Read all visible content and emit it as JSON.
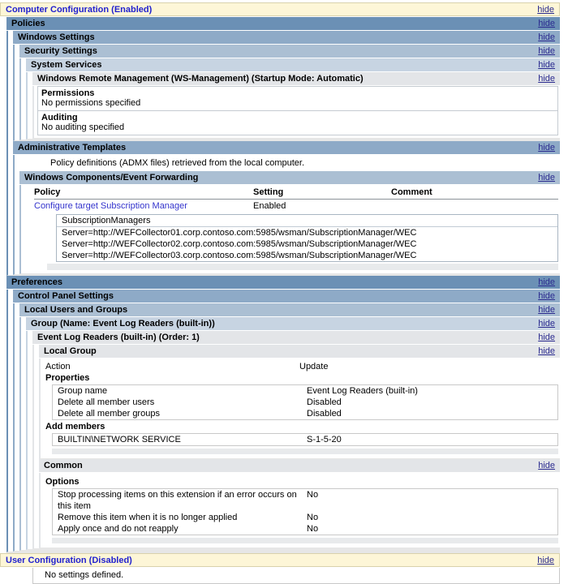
{
  "hide_label": "hide",
  "bars": {
    "computer_config": "Computer Configuration (Enabled)",
    "policies": "Policies",
    "windows_settings": "Windows Settings",
    "security_settings": "Security Settings",
    "system_services": "System Services",
    "wrm_service": "Windows Remote Management (WS-Management) (Startup Mode: Automatic)",
    "admin_templates": "Administrative Templates",
    "wcef": "Windows Components/Event Forwarding",
    "preferences": "Preferences",
    "control_panel_settings": "Control Panel Settings",
    "local_users_groups": "Local Users and Groups",
    "group": "Group (Name: Event Log Readers (built-in))",
    "event_log_readers": "Event Log Readers (built-in) (Order: 1)",
    "local_group": "Local Group",
    "common": "Common",
    "user_config": "User Configuration (Disabled)"
  },
  "wrm_section": {
    "permissions_label": "Permissions",
    "permissions_text": "No permissions specified",
    "auditing_label": "Auditing",
    "auditing_text": "No auditing specified"
  },
  "admin_templates_section": {
    "definition_text": "Policy definitions (ADMX files) retrieved from the local computer."
  },
  "policy_table": {
    "headers": [
      "Policy",
      "Setting",
      "Comment"
    ],
    "row": {
      "policy": "Configure target Subscription Manager",
      "setting": "Enabled",
      "comment": ""
    },
    "detail": {
      "title": "SubscriptionManagers",
      "values": [
        "Server=http://WEFCollector01.corp.contoso.com:5985/wsman/SubscriptionManager/WEC",
        "Server=http://WEFCollector02.corp.contoso.com:5985/wsman/SubscriptionManager/WEC",
        "Server=http://WEFCollector03.corp.contoso.com:5985/wsman/SubscriptionManager/WEC"
      ]
    }
  },
  "local_group_section": {
    "action_label": "Action",
    "action_value": "Update",
    "properties_label": "Properties",
    "properties": [
      {
        "label": "Group name",
        "value": "Event Log Readers (built-in)"
      },
      {
        "label": "Delete all member users",
        "value": "Disabled"
      },
      {
        "label": "Delete all member groups",
        "value": "Disabled"
      }
    ],
    "add_members_label": "Add members",
    "members": [
      {
        "name": "BUILTIN\\NETWORK SERVICE",
        "sid": "S-1-5-20"
      }
    ]
  },
  "common_section": {
    "options_label": "Options",
    "options": [
      {
        "label": "Stop processing items on this extension if an error occurs on this item",
        "value": "No"
      },
      {
        "label": "Remove this item when it is no longer applied",
        "value": "No"
      },
      {
        "label": "Apply once and do not reapply",
        "value": "No"
      }
    ]
  },
  "user_config_section": {
    "empty_text": "No settings defined."
  },
  "colors": {
    "config_bar_bg": "#FDF6D7",
    "config_bar_text": "#2121CE",
    "level1_bar": "#6B90B5",
    "level2_bar": "#8EAAC7",
    "level3_bar": "#ABBFD3",
    "level4_bar": "#C7D4E2",
    "item_bar": "#E3E5E8",
    "policy_link": "#3333CC",
    "hide_link": "#2B2B8F",
    "detail_band": "#E8EAEC"
  }
}
